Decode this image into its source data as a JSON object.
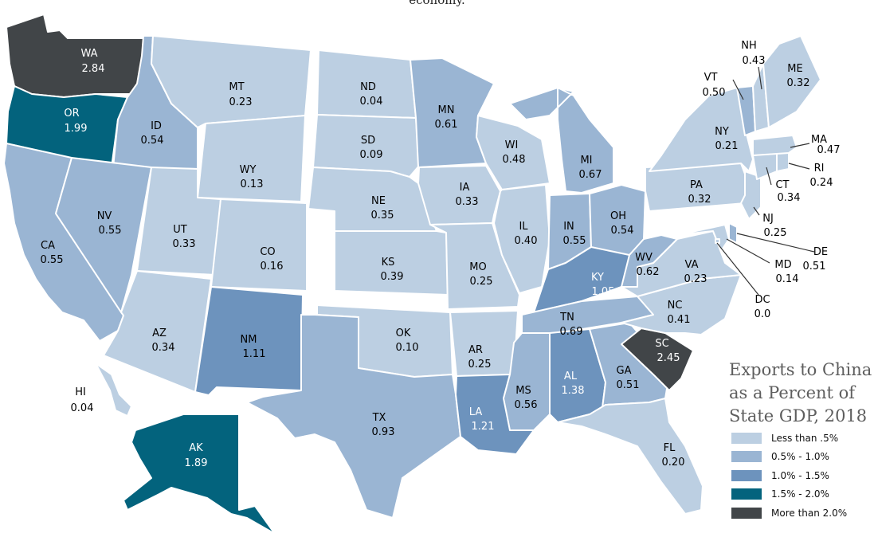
{
  "caption_fragment": "economy.",
  "legend": {
    "title_lines": [
      "Exports to China",
      "as a Percent of",
      "State GDP, 2018"
    ],
    "items": [
      {
        "label": "Less than .5%",
        "color": "#bccfe2"
      },
      {
        "label": "0.5% - 1.0%",
        "color": "#9ab5d3"
      },
      {
        "label": "1.0% - 1.5%",
        "color": "#6d93bd"
      },
      {
        "label": "1.5% - 2.0%",
        "color": "#03637d"
      },
      {
        "label": "More than 2.0%",
        "color": "#414548"
      }
    ]
  },
  "states": [
    {
      "abbr": "WA",
      "value": "2.84",
      "bin": 4
    },
    {
      "abbr": "OR",
      "value": "1.99",
      "bin": 3
    },
    {
      "abbr": "CA",
      "value": "0.55",
      "bin": 1
    },
    {
      "abbr": "ID",
      "value": "0.54",
      "bin": 1
    },
    {
      "abbr": "NV",
      "value": "0.55",
      "bin": 1
    },
    {
      "abbr": "MT",
      "value": "0.23",
      "bin": 0
    },
    {
      "abbr": "WY",
      "value": "0.13",
      "bin": 0
    },
    {
      "abbr": "UT",
      "value": "0.33",
      "bin": 0
    },
    {
      "abbr": "AZ",
      "value": "0.34",
      "bin": 0
    },
    {
      "abbr": "CO",
      "value": "0.16",
      "bin": 0
    },
    {
      "abbr": "NM",
      "value": "1.11",
      "bin": 2
    },
    {
      "abbr": "ND",
      "value": "0.04",
      "bin": 0
    },
    {
      "abbr": "SD",
      "value": "0.09",
      "bin": 0
    },
    {
      "abbr": "NE",
      "value": "0.35",
      "bin": 0
    },
    {
      "abbr": "KS",
      "value": "0.39",
      "bin": 0
    },
    {
      "abbr": "OK",
      "value": "0.10",
      "bin": 0
    },
    {
      "abbr": "TX",
      "value": "0.93",
      "bin": 1
    },
    {
      "abbr": "MN",
      "value": "0.61",
      "bin": 1
    },
    {
      "abbr": "IA",
      "value": "0.33",
      "bin": 0
    },
    {
      "abbr": "MO",
      "value": "0.25",
      "bin": 0
    },
    {
      "abbr": "AR",
      "value": "0.25",
      "bin": 0
    },
    {
      "abbr": "LA",
      "value": "1.21",
      "bin": 2
    },
    {
      "abbr": "WI",
      "value": "0.48",
      "bin": 0
    },
    {
      "abbr": "IL",
      "value": "0.40",
      "bin": 0
    },
    {
      "abbr": "MI",
      "value": "0.67",
      "bin": 1
    },
    {
      "abbr": "IN",
      "value": "0.55",
      "bin": 1
    },
    {
      "abbr": "OH",
      "value": "0.54",
      "bin": 1
    },
    {
      "abbr": "KY",
      "value": "1.05",
      "bin": 2
    },
    {
      "abbr": "TN",
      "value": "0.69",
      "bin": 1
    },
    {
      "abbr": "MS",
      "value": "0.56",
      "bin": 1
    },
    {
      "abbr": "AL",
      "value": "1.38",
      "bin": 2
    },
    {
      "abbr": "GA",
      "value": "0.51",
      "bin": 1
    },
    {
      "abbr": "FL",
      "value": "0.20",
      "bin": 0
    },
    {
      "abbr": "SC",
      "value": "2.45",
      "bin": 4
    },
    {
      "abbr": "NC",
      "value": "0.41",
      "bin": 0
    },
    {
      "abbr": "VA",
      "value": "0.23",
      "bin": 0
    },
    {
      "abbr": "WV",
      "value": "0.62",
      "bin": 1
    },
    {
      "abbr": "PA",
      "value": "0.32",
      "bin": 0
    },
    {
      "abbr": "NY",
      "value": "0.21",
      "bin": 0
    },
    {
      "abbr": "NJ",
      "value": "0.25",
      "bin": 0
    },
    {
      "abbr": "DE",
      "value": "0.51",
      "bin": 1
    },
    {
      "abbr": "MD",
      "value": "0.14",
      "bin": 0
    },
    {
      "abbr": "DC",
      "value": "0.0",
      "bin": 0
    },
    {
      "abbr": "CT",
      "value": "0.34",
      "bin": 0
    },
    {
      "abbr": "RI",
      "value": "0.24",
      "bin": 0
    },
    {
      "abbr": "MA",
      "value": "0.47",
      "bin": 0
    },
    {
      "abbr": "VT",
      "value": "0.50",
      "bin": 1
    },
    {
      "abbr": "NH",
      "value": "0.43",
      "bin": 0
    },
    {
      "abbr": "ME",
      "value": "0.32",
      "bin": 0
    },
    {
      "abbr": "AK",
      "value": "1.89",
      "bin": 3
    },
    {
      "abbr": "HI",
      "value": "0.04",
      "bin": 0
    }
  ]
}
